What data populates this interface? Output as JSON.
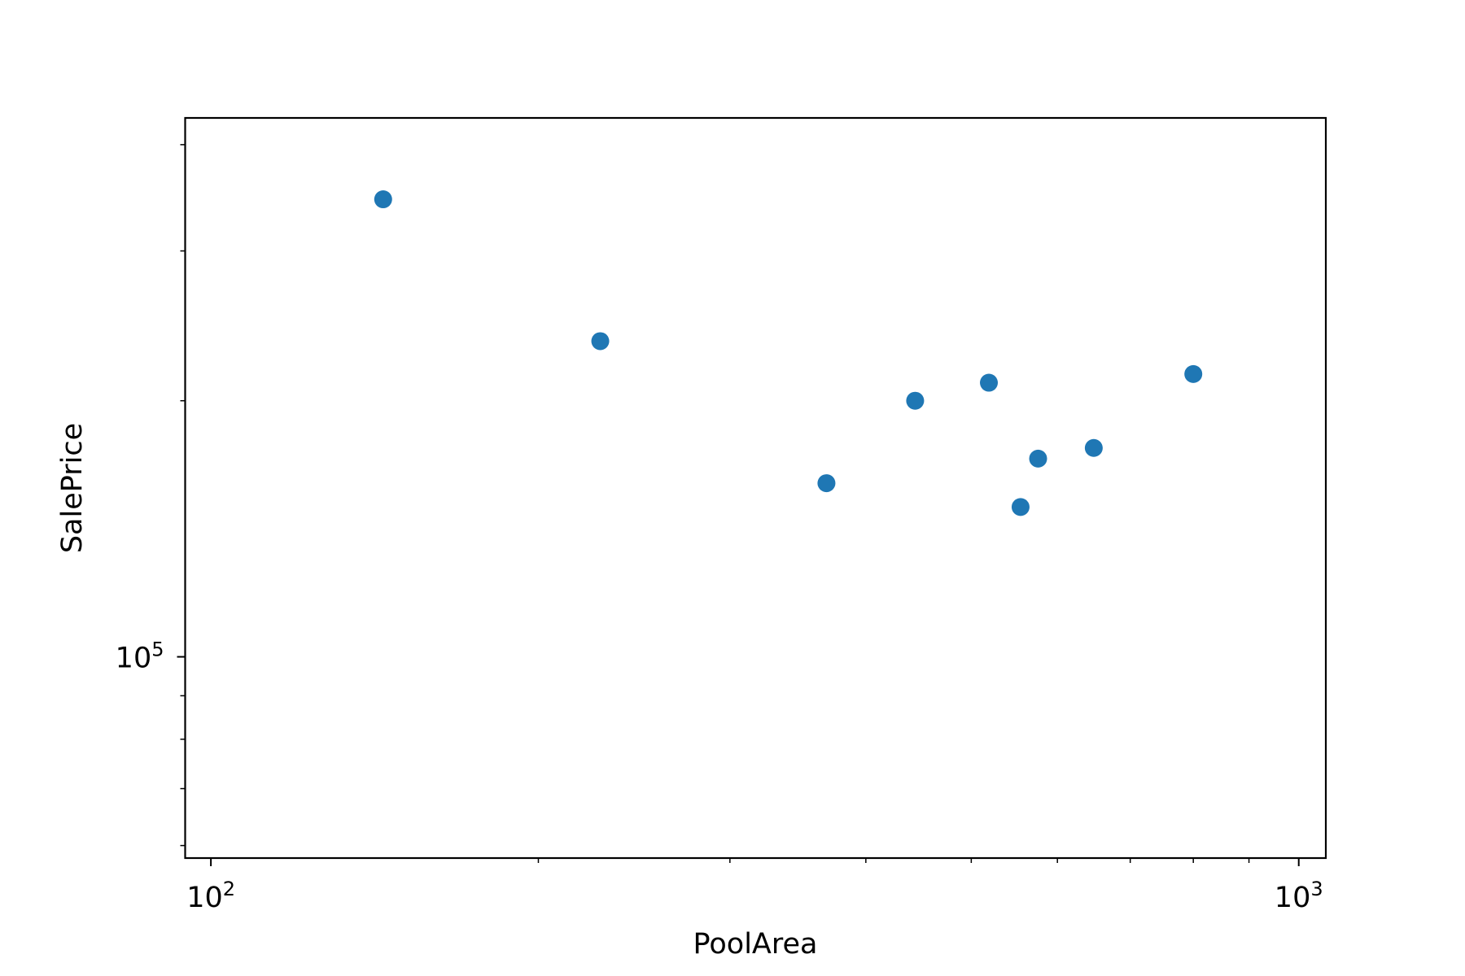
{
  "chart_data": {
    "type": "scatter",
    "title": "",
    "xlabel": "PoolArea",
    "ylabel": "SalePrice",
    "xscale": "log",
    "yscale": "log",
    "xlim": [
      94.7,
      1059
    ],
    "ylim": [
      58000,
      430000
    ],
    "grid": false,
    "marker_color": "#1f77b4",
    "x_major_ticks": [
      {
        "value": 100,
        "base": "10",
        "exp": "2"
      },
      {
        "value": 1000,
        "base": "10",
        "exp": "3"
      }
    ],
    "y_major_ticks": [
      {
        "value": 100000,
        "base": "10",
        "exp": "5"
      }
    ],
    "x_minor_ticks": [
      90,
      200,
      300,
      400,
      500,
      600,
      700,
      800,
      900
    ],
    "y_minor_ticks": [
      60000,
      70000,
      80000,
      90000,
      200000,
      300000,
      400000
    ],
    "points": [
      {
        "x": 144,
        "y": 345000
      },
      {
        "x": 228,
        "y": 235000
      },
      {
        "x": 368,
        "y": 160000
      },
      {
        "x": 444,
        "y": 200000
      },
      {
        "x": 519,
        "y": 210000
      },
      {
        "x": 555,
        "y": 150000
      },
      {
        "x": 576,
        "y": 171000
      },
      {
        "x": 648,
        "y": 176000
      },
      {
        "x": 800,
        "y": 215000
      }
    ]
  }
}
